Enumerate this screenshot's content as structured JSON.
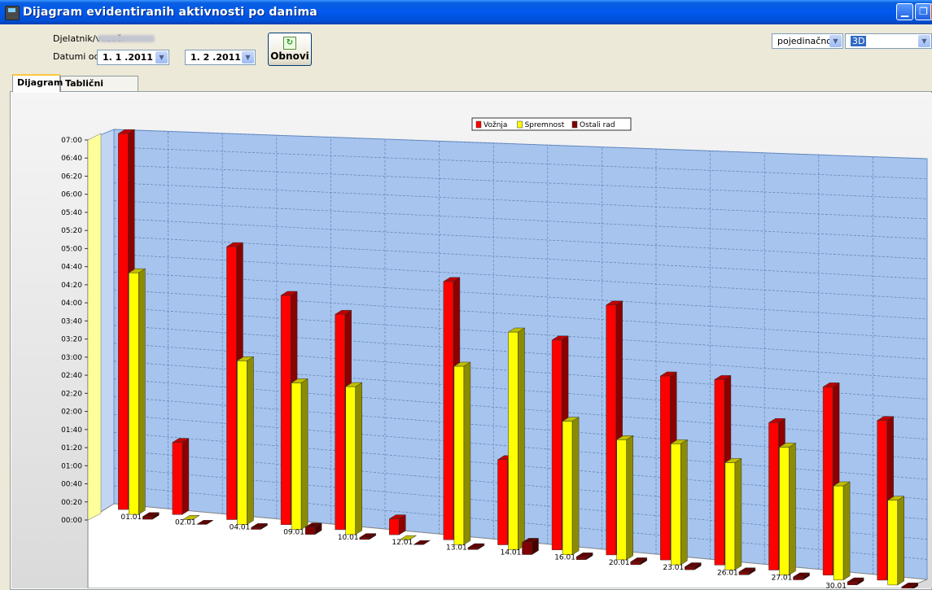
{
  "window": {
    "title": "Dijagram evidentiranih aktivnosti po danima",
    "min_glyph": "▁",
    "max_glyph": "❐"
  },
  "filters": {
    "employee_label": "Djelatnik/vozač:",
    "date_label": "Datumi od - do:",
    "date_from": "1. 1 .2011",
    "date_to": "1. 2 .2011",
    "refresh_label": "Obnovi",
    "mode_value": "pojedinačno",
    "view_value": "3D"
  },
  "tabs": [
    {
      "label": "Dijagram"
    },
    {
      "label": "Tablični pregled"
    }
  ],
  "colors": {
    "voznja": "#ff0000",
    "spremnost": "#ffff00",
    "ostali": "#800000",
    "wall": "#a6c4ee",
    "floor": "#ffffff"
  },
  "chart_data": {
    "type": "bar",
    "legend_position": "top",
    "categories": [
      "01.01",
      "02.01",
      "04.01",
      "09.01",
      "10.01",
      "12.01",
      "13.01",
      "14.01",
      "16.01",
      "20.01",
      "23.01",
      "26.01",
      "27.01",
      "30.01",
      ""
    ],
    "yticks": [
      "00:00",
      "00:20",
      "00:40",
      "01:00",
      "01:20",
      "01:40",
      "02:00",
      "02:20",
      "02:40",
      "03:00",
      "03:20",
      "03:40",
      "04:00",
      "04:20",
      "04:40",
      "05:00",
      "05:20",
      "05:40",
      "06:00",
      "06:20",
      "06:40",
      "07:00"
    ],
    "ylim_minutes": [
      0,
      420
    ],
    "series": [
      {
        "name": "Vožnja",
        "values_minutes": [
          420,
          80,
          300,
          250,
          233,
          17,
          275,
          90,
          220,
          260,
          190,
          190,
          150,
          190,
          160
        ]
      },
      {
        "name": "Spremnost",
        "values_minutes": [
          270,
          0,
          180,
          160,
          160,
          0,
          190,
          230,
          140,
          125,
          125,
          110,
          130,
          95,
          85
        ]
      },
      {
        "name": "Ostali rad",
        "values_minutes": [
          3,
          0,
          2,
          8,
          2,
          0,
          2,
          13,
          3,
          3,
          3,
          3,
          3,
          3,
          3
        ]
      }
    ]
  }
}
